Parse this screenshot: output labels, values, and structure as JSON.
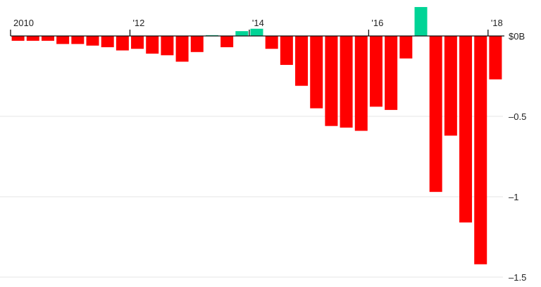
{
  "chart_data": {
    "type": "bar",
    "title": "",
    "xlabel": "",
    "ylabel": "",
    "ylim": [
      -1.5,
      0.2
    ],
    "grid": true,
    "colors": {
      "positive": "#00d496",
      "negative": "#ff0000",
      "axis": "#111111",
      "grid": "#e6e6e6"
    },
    "x_tick_labels": [
      {
        "label": "2010",
        "index": 0
      },
      {
        "label": "'12",
        "index": 8
      },
      {
        "label": "'14",
        "index": 16
      },
      {
        "label": "'16",
        "index": 24
      },
      {
        "label": "'18",
        "index": 32
      }
    ],
    "y_tick_labels": [
      {
        "label": "$0B",
        "value": 0
      },
      {
        "label": "–0.5",
        "value": -0.5
      },
      {
        "label": "–1",
        "value": -1
      },
      {
        "label": "–1.5",
        "value": -1.5
      }
    ],
    "values": [
      -0.03,
      -0.03,
      -0.03,
      -0.05,
      -0.05,
      -0.06,
      -0.07,
      -0.09,
      -0.08,
      -0.11,
      -0.12,
      -0.16,
      -0.1,
      0.005,
      -0.07,
      0.03,
      0.045,
      -0.08,
      -0.18,
      -0.31,
      -0.45,
      -0.56,
      -0.57,
      -0.59,
      -0.44,
      -0.46,
      -0.14,
      0.18,
      -0.97,
      -0.62,
      -1.16,
      -1.42,
      -0.27
    ]
  }
}
